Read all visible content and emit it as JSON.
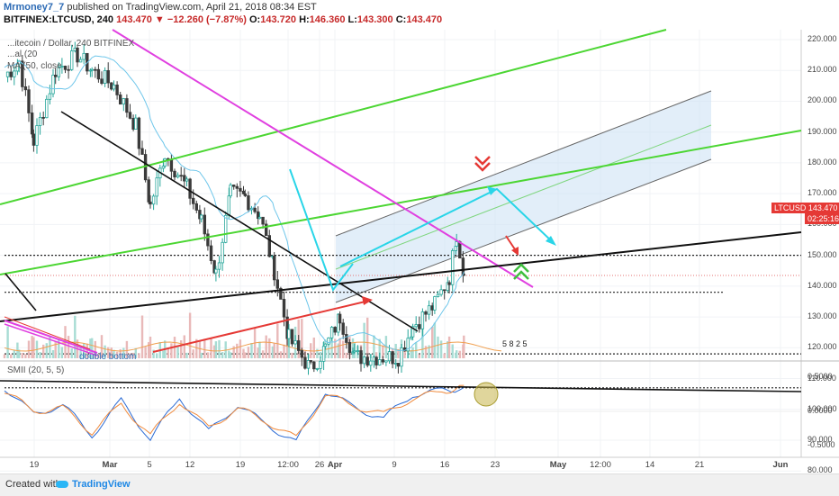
{
  "header": {
    "author": "Mrmoney7_7",
    "published": "published on TradingView.com, April 21, 2018 08:34 EST",
    "symbol": "BITFINEX:LTCUSD, 240",
    "last": "143.470",
    "change": "▼ −12.260 (−7.87%)",
    "o_label": "O:",
    "o": "143.720",
    "h_label": "H:",
    "h": "146.360",
    "l_label": "L:",
    "l": "143.300",
    "c_label": "C:",
    "c": "143.470"
  },
  "overlays": {
    "series_name": "...itecoin / Dollar, 240 BITFINEX",
    "indicator1": "...al (20",
    "indicator2": "MA (50, close"
  },
  "annotations": {
    "earnings_badge": "5 8 2 5",
    "double_bottom": "double bottom"
  },
  "price_axis": {
    "ticks": [
      "220.000",
      "210.000",
      "200.000",
      "190.000",
      "180.000",
      "170.000",
      "160.000",
      "150.000",
      "140.000",
      "130.000",
      "120.000",
      "110.000",
      "100.000",
      "90.000",
      "80.000"
    ],
    "current_label": "LTCUSD 143.470",
    "countdown": "02:25:16"
  },
  "time_axis": {
    "ticks": [
      "19",
      "Mar",
      "5",
      "12",
      "19",
      "12:00",
      "26",
      "Apr",
      "9",
      "16",
      "23",
      "May",
      "12:00",
      "14",
      "21",
      "Jun"
    ]
  },
  "oscillator": {
    "label": "SMII (20, 5, 5)",
    "ticks": [
      "0.5000",
      "0.0000",
      "-0.5000"
    ]
  },
  "footer": {
    "created": "Created with",
    "brand": "TradingView"
  },
  "colors": {
    "up": "#26a69a",
    "down": "#3b3b3b",
    "ma": "#6ec6ea",
    "green_line": "#4cd633",
    "magenta_line": "#e040e0",
    "cyan_arrow": "#29d5e8",
    "red_arrow": "#e53935",
    "channel_fill": "#cfe3f5"
  },
  "chart_data": [
    {
      "type": "candlestick",
      "title": "",
      "x_range": [
        "2018-02-17",
        "2018-06-03"
      ],
      "ylim": [
        75,
        225
      ],
      "y_scale": "linear",
      "approx_close_path": [
        {
          "x": "2018-02-17",
          "y": 208
        },
        {
          "x": "2018-02-19",
          "y": 213
        },
        {
          "x": "2018-02-21",
          "y": 187
        },
        {
          "x": "2018-02-24",
          "y": 210
        },
        {
          "x": "2018-02-27",
          "y": 215
        },
        {
          "x": "2018-03-01",
          "y": 210
        },
        {
          "x": "2018-03-04",
          "y": 205
        },
        {
          "x": "2018-03-07",
          "y": 192
        },
        {
          "x": "2018-03-09",
          "y": 166
        },
        {
          "x": "2018-03-11",
          "y": 183
        },
        {
          "x": "2018-03-14",
          "y": 172
        },
        {
          "x": "2018-03-16",
          "y": 161
        },
        {
          "x": "2018-03-18",
          "y": 144
        },
        {
          "x": "2018-03-20",
          "y": 170
        },
        {
          "x": "2018-03-22",
          "y": 169
        },
        {
          "x": "2018-03-24",
          "y": 163
        },
        {
          "x": "2018-03-26",
          "y": 145
        },
        {
          "x": "2018-03-28",
          "y": 123
        },
        {
          "x": "2018-03-31",
          "y": 113
        },
        {
          "x": "2018-04-02",
          "y": 120
        },
        {
          "x": "2018-04-04",
          "y": 130
        },
        {
          "x": "2018-04-06",
          "y": 117
        },
        {
          "x": "2018-04-09",
          "y": 117
        },
        {
          "x": "2018-04-12",
          "y": 117
        },
        {
          "x": "2018-04-14",
          "y": 127
        },
        {
          "x": "2018-04-17",
          "y": 134
        },
        {
          "x": "2018-04-19",
          "y": 143
        },
        {
          "x": "2018-04-20",
          "y": 157
        },
        {
          "x": "2018-04-21",
          "y": 143.47
        }
      ],
      "last": {
        "open": 143.72,
        "high": 146.36,
        "low": 143.3,
        "close": 143.47
      },
      "horizontal_levels": [
        150,
        138,
        118,
        107
      ],
      "grid": true,
      "legend": "top-left"
    },
    {
      "type": "line",
      "title": "SMII (20, 5, 5)",
      "ylim": [
        -0.6,
        0.6
      ],
      "series": [
        {
          "name": "SMII",
          "x": [
            "2018-02-17",
            "2018-02-21",
            "2018-02-25",
            "2018-03-01",
            "2018-03-05",
            "2018-03-09",
            "2018-03-13",
            "2018-03-17",
            "2018-03-21",
            "2018-03-25",
            "2018-03-29",
            "2018-04-02",
            "2018-04-06",
            "2018-04-10",
            "2018-04-14",
            "2018-04-18",
            "2018-04-21"
          ],
          "values": [
            0.35,
            -0.05,
            0.1,
            -0.35,
            0.15,
            -0.4,
            0.2,
            -0.3,
            0.1,
            -0.2,
            -0.45,
            0.3,
            0.05,
            -0.1,
            0.25,
            0.3,
            0.35
          ]
        },
        {
          "name": "Signal",
          "x": [
            "2018-02-17",
            "2018-02-21",
            "2018-02-25",
            "2018-03-01",
            "2018-03-05",
            "2018-03-09",
            "2018-03-13",
            "2018-03-17",
            "2018-03-21",
            "2018-03-25",
            "2018-03-29",
            "2018-04-02",
            "2018-04-06",
            "2018-04-10",
            "2018-04-14",
            "2018-04-18",
            "2018-04-21"
          ],
          "values": [
            0.3,
            0.0,
            0.05,
            -0.3,
            0.1,
            -0.35,
            0.15,
            -0.25,
            0.05,
            -0.15,
            -0.4,
            0.25,
            0.08,
            -0.05,
            0.2,
            0.28,
            0.38
          ]
        }
      ]
    }
  ]
}
